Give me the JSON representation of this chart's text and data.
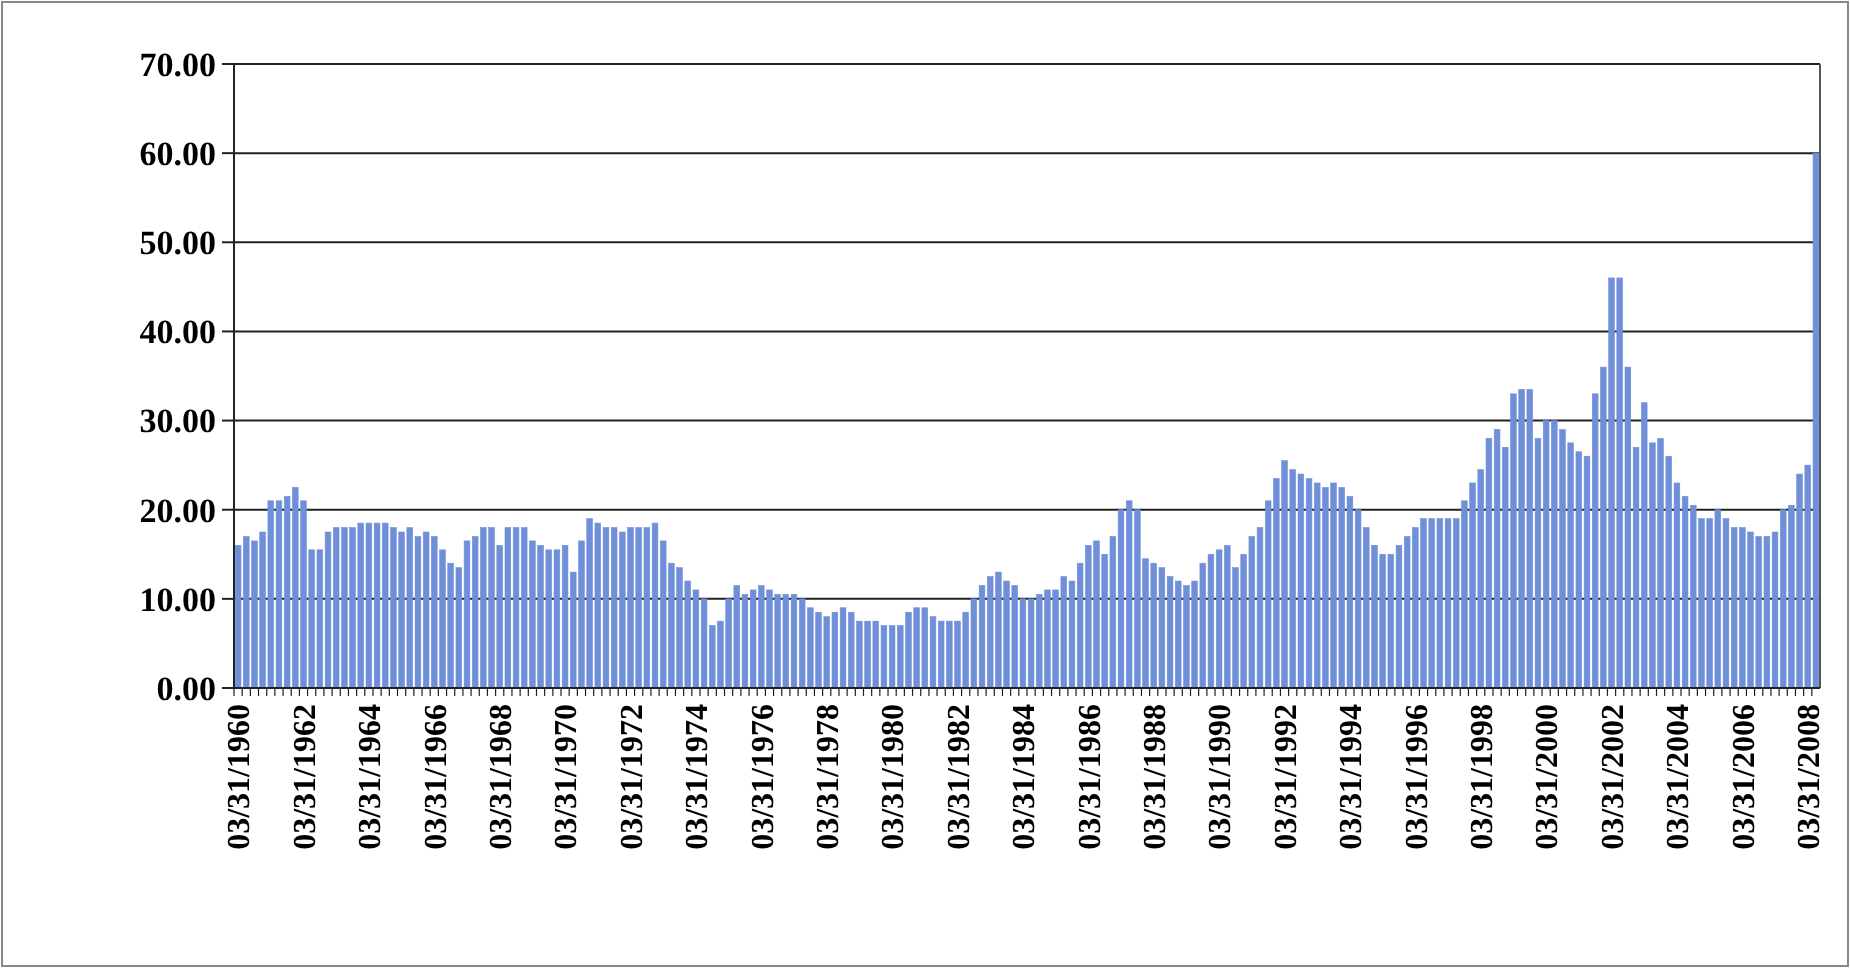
{
  "chart_data": {
    "type": "bar",
    "categories": [
      "03/31/1960",
      null,
      null,
      null,
      null,
      null,
      null,
      null,
      "03/31/1962",
      null,
      null,
      null,
      null,
      null,
      null,
      null,
      "03/31/1964",
      null,
      null,
      null,
      null,
      null,
      null,
      null,
      "03/31/1966",
      null,
      null,
      null,
      null,
      null,
      null,
      null,
      "03/31/1968",
      null,
      null,
      null,
      null,
      null,
      null,
      null,
      "03/31/1970",
      null,
      null,
      null,
      null,
      null,
      null,
      null,
      "03/31/1972",
      null,
      null,
      null,
      null,
      null,
      null,
      null,
      "03/31/1974",
      null,
      null,
      null,
      null,
      null,
      null,
      null,
      "03/31/1976",
      null,
      null,
      null,
      null,
      null,
      null,
      null,
      "03/31/1978",
      null,
      null,
      null,
      null,
      null,
      null,
      null,
      "03/31/1980",
      null,
      null,
      null,
      null,
      null,
      null,
      null,
      "03/31/1982",
      null,
      null,
      null,
      null,
      null,
      null,
      null,
      "03/31/1984",
      null,
      null,
      null,
      null,
      null,
      null,
      null,
      "03/31/1986",
      null,
      null,
      null,
      null,
      null,
      null,
      null,
      "03/31/1988",
      null,
      null,
      null,
      null,
      null,
      null,
      null,
      "03/31/1990",
      null,
      null,
      null,
      null,
      null,
      null,
      null,
      "03/31/1992",
      null,
      null,
      null,
      null,
      null,
      null,
      null,
      "03/31/1994",
      null,
      null,
      null,
      null,
      null,
      null,
      null,
      "03/31/1996",
      null,
      null,
      null,
      null,
      null,
      null,
      null,
      "03/31/1998",
      null,
      null,
      null,
      null,
      null,
      null,
      null,
      "03/31/2000",
      null,
      null,
      null,
      null,
      null,
      null,
      null,
      "03/31/2002",
      null,
      null,
      null,
      null,
      null,
      null,
      null,
      "03/31/2004",
      null,
      null,
      null,
      null,
      null,
      null,
      null,
      "03/31/2006",
      null,
      null,
      null,
      null,
      null,
      null,
      null,
      "03/31/2008",
      null
    ],
    "values": [
      16,
      17,
      16.5,
      17.5,
      21,
      21,
      21.5,
      22.5,
      21,
      15.5,
      15.5,
      17.5,
      18,
      18,
      18,
      18.5,
      18.5,
      18.5,
      18.5,
      18,
      17.5,
      18,
      17,
      17.5,
      17,
      15.5,
      14,
      13.5,
      16.5,
      17,
      18,
      18,
      16,
      18,
      18,
      18,
      16.5,
      16,
      15.5,
      15.5,
      16,
      13,
      16.5,
      19,
      18.5,
      18,
      18,
      17.5,
      18,
      18,
      18,
      18.5,
      16.5,
      14,
      13.5,
      12,
      11,
      10,
      7,
      7.5,
      10,
      11.5,
      10.5,
      11,
      11.5,
      11,
      10.5,
      10.5,
      10.5,
      10,
      9,
      8.5,
      8,
      8.5,
      9,
      8.5,
      7.5,
      7.5,
      7.5,
      7,
      7,
      7,
      8.5,
      9,
      9,
      8,
      7.5,
      7.5,
      7.5,
      8.5,
      10,
      11.5,
      12.5,
      13,
      12,
      11.5,
      10,
      10,
      10.5,
      11,
      11,
      12.5,
      12,
      14,
      16,
      16.5,
      15,
      17,
      20,
      21,
      20,
      14.5,
      14,
      13.5,
      12.5,
      12,
      11.5,
      12,
      14,
      15,
      15.5,
      16,
      13.5,
      15,
      17,
      18,
      21,
      23.5,
      25.5,
      24.5,
      24,
      23.5,
      23,
      22.5,
      23,
      22.5,
      21.5,
      20,
      18,
      16,
      15,
      15,
      16,
      17,
      18,
      19,
      19,
      19,
      19,
      19,
      21,
      23,
      24.5,
      28,
      29,
      27,
      33,
      33.5,
      33.5,
      28,
      30,
      30,
      29,
      27.5,
      26.5,
      26,
      33,
      36,
      46,
      46,
      36,
      27,
      32,
      27.5,
      28,
      26,
      23,
      21.5,
      20.5,
      19,
      19,
      20,
      19,
      18,
      18,
      17.5,
      17,
      17,
      17.5,
      20,
      20.5,
      24,
      25,
      60
    ],
    "color": "#6f8fd8",
    "ylim": [
      0,
      70
    ],
    "yticks": [
      {
        "value": 0,
        "label": "0.00"
      },
      {
        "value": 10,
        "label": "10.00"
      },
      {
        "value": 20,
        "label": "20.00"
      },
      {
        "value": 30,
        "label": "30.00"
      },
      {
        "value": 40,
        "label": "40.00"
      },
      {
        "value": 50,
        "label": "50.00"
      },
      {
        "value": 60,
        "label": "60.00"
      },
      {
        "value": 70,
        "label": "70.00"
      }
    ],
    "grid": "y"
  }
}
